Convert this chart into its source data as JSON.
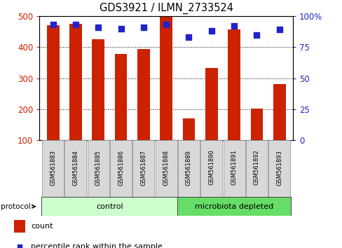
{
  "title": "GDS3921 / ILMN_2733524",
  "samples": [
    "GSM561883",
    "GSM561884",
    "GSM561885",
    "GSM561886",
    "GSM561887",
    "GSM561888",
    "GSM561889",
    "GSM561890",
    "GSM561891",
    "GSM561892",
    "GSM561893"
  ],
  "counts": [
    470,
    475,
    425,
    378,
    393,
    497,
    170,
    333,
    458,
    201,
    281
  ],
  "percentile_ranks": [
    93,
    93,
    91,
    90,
    91,
    93,
    83,
    88,
    92,
    85,
    89
  ],
  "ylim_left": [
    100,
    500
  ],
  "ylim_right": [
    0,
    100
  ],
  "yticks_left": [
    100,
    200,
    300,
    400,
    500
  ],
  "yticks_right": [
    0,
    25,
    50,
    75,
    100
  ],
  "bar_color": "#cc2200",
  "dot_color": "#2222cc",
  "grid_color": "#888888",
  "bg_color": "#ffffff",
  "axis_color_left": "#cc2200",
  "axis_color_right": "#2222cc",
  "control_samples": 6,
  "microbiota_samples": 5,
  "control_label": "control",
  "microbiota_label": "microbiota depleted",
  "protocol_label": "protocol",
  "legend_count": "count",
  "legend_percentile": "percentile rank within the sample",
  "control_bg": "#ccffcc",
  "microbiota_bg": "#66dd66",
  "tick_label_bg": "#d8d8d8",
  "tick_label_edge": "#999999"
}
